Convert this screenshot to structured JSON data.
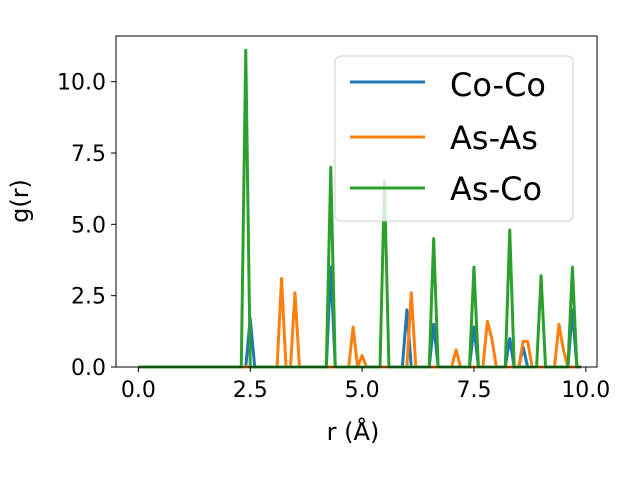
{
  "chart_data": {
    "type": "line",
    "title": "",
    "xlabel": "r (Å)",
    "ylabel": "g(r)",
    "xlim": [
      -0.5,
      10.25
    ],
    "ylim": [
      0,
      11.6
    ],
    "grid": false,
    "legend_position": "top-right",
    "x_ticks": [
      0.0,
      2.5,
      5.0,
      7.5,
      10.0
    ],
    "x_tick_labels": [
      "0.0",
      "2.5",
      "5.0",
      "7.5",
      "10.0"
    ],
    "y_ticks": [
      0.0,
      2.5,
      5.0,
      7.5,
      10.0
    ],
    "y_tick_labels": [
      "0.0",
      "2.5",
      "5.0",
      "7.5",
      "10.0"
    ],
    "x": [
      0.0,
      2.3,
      2.4,
      2.5,
      2.6,
      2.7,
      3.0,
      3.1,
      3.2,
      3.3,
      3.4,
      3.5,
      3.6,
      3.8,
      4.1,
      4.2,
      4.3,
      4.4,
      4.5,
      4.6,
      4.7,
      4.8,
      4.9,
      5.0,
      5.1,
      5.3,
      5.4,
      5.5,
      5.6,
      5.7,
      5.8,
      5.9,
      6.0,
      6.1,
      6.2,
      6.4,
      6.5,
      6.6,
      6.7,
      6.8,
      6.9,
      7.0,
      7.1,
      7.2,
      7.3,
      7.4,
      7.5,
      7.6,
      7.7,
      7.8,
      7.9,
      8.0,
      8.1,
      8.2,
      8.3,
      8.4,
      8.5,
      8.6,
      8.7,
      8.8,
      8.9,
      9.0,
      9.1,
      9.2,
      9.3,
      9.4,
      9.5,
      9.6,
      9.7,
      9.8,
      9.9
    ],
    "series": [
      {
        "name": "Co-Co",
        "color": "#1f77b4",
        "values": [
          0,
          0,
          0,
          1.7,
          0,
          0,
          0,
          0,
          0,
          0,
          0,
          0,
          0,
          0,
          0,
          0,
          3.5,
          0,
          0,
          0,
          0,
          0,
          0,
          0,
          0,
          0,
          0,
          0,
          0,
          0,
          0,
          0,
          2.0,
          0,
          0,
          0,
          0,
          1.5,
          0,
          0,
          0,
          0,
          0,
          0,
          0,
          0,
          1.4,
          0,
          0,
          0,
          0,
          0,
          0,
          0,
          1.0,
          0,
          0,
          0.7,
          0,
          0,
          0,
          0,
          0,
          0,
          0,
          0,
          0,
          0,
          2.0,
          0,
          0
        ]
      },
      {
        "name": "As-As",
        "color": "#ff7f0e",
        "values": [
          0,
          0,
          0,
          0,
          0,
          0,
          0,
          0,
          3.1,
          0,
          0,
          2.6,
          0,
          0,
          0,
          0,
          0,
          0,
          0,
          0,
          0,
          1.4,
          0,
          0.4,
          0,
          0,
          0,
          0,
          0,
          0,
          0,
          0,
          0,
          2.6,
          0,
          0,
          0,
          0,
          0,
          0,
          0,
          0,
          0.6,
          0,
          0,
          0,
          0,
          0,
          0,
          1.6,
          1.0,
          0,
          0,
          0,
          0,
          0,
          0,
          0.9,
          0.9,
          0,
          0,
          0,
          0,
          0,
          0,
          1.5,
          0.6,
          0,
          0,
          0,
          0
        ]
      },
      {
        "name": "As-Co",
        "color": "#2ca02c",
        "values": [
          0,
          0,
          11.1,
          0,
          0,
          0,
          0,
          0,
          0,
          0,
          0,
          0,
          0,
          0,
          0,
          0,
          7.0,
          0,
          0,
          0,
          0,
          0,
          0,
          0,
          0,
          0,
          0,
          6.5,
          0,
          0,
          0,
          0,
          0,
          0,
          0,
          0,
          0,
          4.5,
          0,
          0,
          0,
          0,
          0,
          0,
          0,
          0,
          3.5,
          0,
          0,
          0,
          0,
          0,
          0,
          0,
          4.8,
          0,
          0,
          0,
          0,
          0,
          0,
          3.2,
          0,
          0,
          0,
          0,
          0,
          0,
          3.5,
          0,
          0
        ]
      }
    ]
  }
}
